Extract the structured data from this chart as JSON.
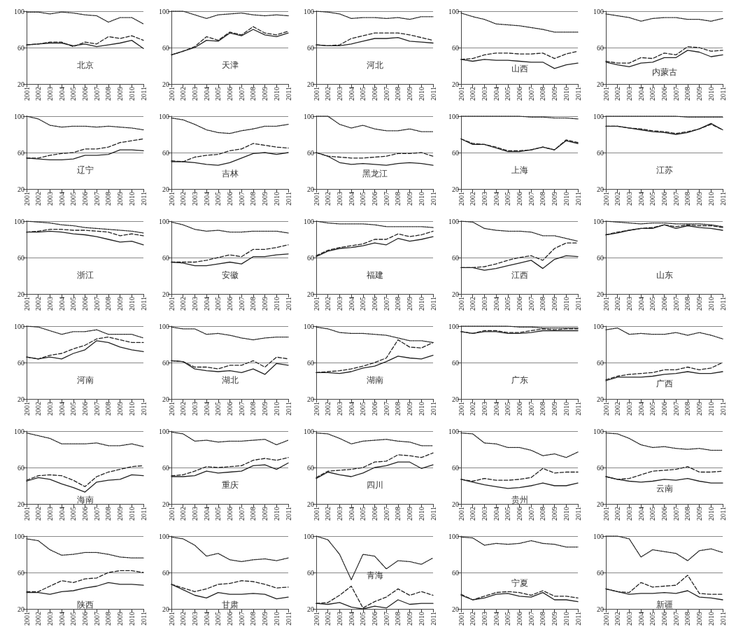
{
  "chart_data": [
    {
      "type": "line",
      "title": "北京",
      "categories": [
        "2001",
        "2002",
        "2003",
        "2004",
        "2005",
        "2006",
        "2007",
        "2008",
        "2009",
        "2010",
        "2011"
      ],
      "ylim": [
        20,
        100
      ],
      "yticks": [
        20,
        60,
        100
      ],
      "grid": "y",
      "series": [
        {
          "color": "#222222",
          "line_style": "dotted",
          "values": [
            99,
            99,
            97,
            99,
            98,
            96,
            95,
            88,
            93,
            93,
            86
          ]
        },
        {
          "color": "#222222",
          "line_style": "dashed",
          "values": [
            63,
            64,
            66,
            66,
            61,
            66,
            64,
            72,
            70,
            73,
            68
          ]
        },
        {
          "color": "#222222",
          "line_style": "solid",
          "values": [
            63,
            64,
            65,
            65,
            62,
            64,
            61,
            63,
            65,
            68,
            59
          ]
        }
      ]
    },
    {
      "type": "line",
      "title": "天津",
      "categories": [
        "2001",
        "2002",
        "2003",
        "2004",
        "2005",
        "2006",
        "2007",
        "2008",
        "2009",
        "2010",
        "2011"
      ],
      "ylim": [
        20,
        100
      ],
      "yticks": [
        20,
        60,
        100
      ],
      "grid": "y",
      "series": [
        {
          "color": "#222222",
          "line_style": "dotted",
          "values": [
            100,
            100,
            96,
            92,
            96,
            97,
            98,
            96,
            95,
            96,
            95
          ]
        },
        {
          "color": "#222222",
          "line_style": "dashed",
          "values": [
            52,
            56,
            61,
            72,
            68,
            77,
            74,
            83,
            76,
            74,
            78
          ]
        },
        {
          "color": "#222222",
          "line_style": "solid",
          "values": [
            52,
            56,
            60,
            68,
            67,
            76,
            73,
            80,
            74,
            72,
            76
          ]
        }
      ]
    },
    {
      "type": "line",
      "title": "河北",
      "categories": [
        "2001",
        "2002",
        "2003",
        "2004",
        "2005",
        "2006",
        "2007",
        "2008",
        "2009",
        "2010",
        "2011"
      ],
      "ylim": [
        20,
        100
      ],
      "yticks": [
        20,
        60,
        100
      ],
      "grid": "y",
      "series": [
        {
          "color": "#222222",
          "line_style": "dotted",
          "values": [
            100,
            99,
            97,
            92,
            93,
            93,
            92,
            93,
            91,
            94,
            94
          ]
        },
        {
          "color": "#222222",
          "line_style": "dashed",
          "values": [
            63,
            62,
            63,
            70,
            73,
            76,
            76,
            76,
            74,
            71,
            68
          ]
        },
        {
          "color": "#222222",
          "line_style": "solid",
          "values": [
            63,
            62,
            62,
            64,
            67,
            70,
            70,
            71,
            67,
            66,
            65
          ]
        }
      ]
    },
    {
      "type": "line",
      "title": "山西",
      "categories": [
        "2001",
        "2002",
        "2003",
        "2004",
        "2005",
        "2006",
        "2007",
        "2008",
        "2009",
        "2010",
        "2011"
      ],
      "ylim": [
        20,
        100
      ],
      "yticks": [
        20,
        60,
        100
      ],
      "grid": "y",
      "series": [
        {
          "color": "#222222",
          "line_style": "dotted",
          "values": [
            98,
            94,
            91,
            86,
            85,
            84,
            82,
            80,
            77,
            77,
            77
          ]
        },
        {
          "color": "#222222",
          "line_style": "dashed",
          "values": [
            47,
            48,
            52,
            54,
            54,
            53,
            53,
            54,
            48,
            53,
            56
          ]
        },
        {
          "color": "#222222",
          "line_style": "solid",
          "values": [
            47,
            45,
            47,
            46,
            46,
            45,
            44,
            44,
            37,
            41,
            43
          ]
        }
      ]
    },
    {
      "type": "line",
      "title": "内蒙古",
      "categories": [
        "2001",
        "2002",
        "2003",
        "2004",
        "2005",
        "2006",
        "2007",
        "2008",
        "2009",
        "2010",
        "2011"
      ],
      "ylim": [
        20,
        100
      ],
      "yticks": [
        20,
        60,
        100
      ],
      "grid": "y",
      "series": [
        {
          "color": "#222222",
          "line_style": "dotted",
          "values": [
            97,
            95,
            93,
            89,
            92,
            93,
            93,
            91,
            91,
            89,
            92
          ]
        },
        {
          "color": "#222222",
          "line_style": "dashed",
          "values": [
            45,
            43,
            43,
            49,
            48,
            54,
            52,
            61,
            60,
            56,
            57
          ]
        },
        {
          "color": "#222222",
          "line_style": "solid",
          "values": [
            44,
            41,
            39,
            43,
            44,
            49,
            49,
            57,
            55,
            50,
            52
          ]
        }
      ]
    },
    {
      "type": "line",
      "title": "辽宁",
      "categories": [
        "2001",
        "2002",
        "2003",
        "2004",
        "2005",
        "2006",
        "2007",
        "2008",
        "2009",
        "2010",
        "2011"
      ],
      "ylim": [
        20,
        100
      ],
      "yticks": [
        20,
        60,
        100
      ],
      "grid": "y",
      "series": [
        {
          "color": "#222222",
          "line_style": "dotted",
          "values": [
            100,
            97,
            90,
            88,
            89,
            89,
            88,
            89,
            88,
            87,
            85
          ]
        },
        {
          "color": "#222222",
          "line_style": "dashed",
          "values": [
            54,
            54,
            57,
            59,
            60,
            64,
            64,
            66,
            71,
            73,
            75
          ]
        },
        {
          "color": "#222222",
          "line_style": "solid",
          "values": [
            54,
            53,
            52,
            52,
            53,
            57,
            57,
            58,
            63,
            63,
            62
          ]
        }
      ]
    },
    {
      "type": "line",
      "title": "吉林",
      "categories": [
        "2001",
        "2002",
        "2003",
        "2004",
        "2005",
        "2006",
        "2007",
        "2008",
        "2009",
        "2010",
        "2011"
      ],
      "ylim": [
        20,
        100
      ],
      "yticks": [
        20,
        60,
        100
      ],
      "grid": "y",
      "series": [
        {
          "color": "#222222",
          "line_style": "dotted",
          "values": [
            98,
            96,
            91,
            85,
            82,
            81,
            84,
            86,
            89,
            89,
            91
          ]
        },
        {
          "color": "#222222",
          "line_style": "dashed",
          "values": [
            51,
            50,
            55,
            57,
            58,
            62,
            64,
            70,
            68,
            66,
            65
          ]
        },
        {
          "color": "#222222",
          "line_style": "solid",
          "values": [
            50,
            50,
            49,
            47,
            46,
            49,
            54,
            59,
            60,
            58,
            60
          ]
        }
      ]
    },
    {
      "type": "line",
      "title": "黑龙江",
      "categories": [
        "2001",
        "2002",
        "2003",
        "2004",
        "2005",
        "2006",
        "2007",
        "2008",
        "2009",
        "2010",
        "2011"
      ],
      "ylim": [
        20,
        100
      ],
      "yticks": [
        20,
        60,
        100
      ],
      "grid": "y",
      "series": [
        {
          "color": "#222222",
          "line_style": "dotted",
          "values": [
            100,
            100,
            91,
            87,
            90,
            86,
            84,
            84,
            86,
            83,
            83
          ]
        },
        {
          "color": "#222222",
          "line_style": "dashed",
          "values": [
            60,
            56,
            55,
            54,
            54,
            55,
            56,
            59,
            59,
            60,
            56
          ]
        },
        {
          "color": "#222222",
          "line_style": "solid",
          "values": [
            60,
            56,
            49,
            47,
            48,
            47,
            46,
            48,
            49,
            48,
            46
          ]
        }
      ]
    },
    {
      "type": "line",
      "title": "上海",
      "categories": [
        "2001",
        "2002",
        "2003",
        "2004",
        "2005",
        "2006",
        "2007",
        "2008",
        "2009",
        "2010",
        "2011"
      ],
      "ylim": [
        20,
        100
      ],
      "yticks": [
        20,
        60,
        100
      ],
      "grid": "y",
      "series": [
        {
          "color": "#222222",
          "line_style": "dotted",
          "values": [
            100,
            100,
            100,
            100,
            100,
            100,
            99,
            99,
            98,
            98,
            97
          ]
        },
        {
          "color": "#222222",
          "line_style": "dashed",
          "values": [
            75,
            70,
            69,
            66,
            62,
            62,
            63,
            66,
            63,
            74,
            71
          ]
        },
        {
          "color": "#222222",
          "line_style": "solid",
          "values": [
            75,
            69,
            69,
            65,
            61,
            61,
            63,
            66,
            63,
            73,
            70
          ]
        }
      ]
    },
    {
      "type": "line",
      "title": "江苏",
      "categories": [
        "2001",
        "2002",
        "2003",
        "2004",
        "2005",
        "2006",
        "2007",
        "2008",
        "2009",
        "2010",
        "2011"
      ],
      "ylim": [
        20,
        100
      ],
      "yticks": [
        20,
        60,
        100
      ],
      "grid": "y",
      "series": [
        {
          "color": "#222222",
          "line_style": "dotted",
          "values": [
            100,
            100,
            100,
            100,
            100,
            100,
            100,
            99,
            99,
            99,
            99
          ]
        },
        {
          "color": "#222222",
          "line_style": "dashed",
          "values": [
            89,
            89,
            87,
            86,
            84,
            83,
            81,
            83,
            86,
            91,
            85
          ]
        },
        {
          "color": "#222222",
          "line_style": "solid",
          "values": [
            89,
            89,
            87,
            85,
            83,
            82,
            80,
            82,
            86,
            92,
            85
          ]
        }
      ]
    },
    {
      "type": "line",
      "title": "浙江",
      "categories": [
        "2001",
        "2002",
        "2003",
        "2004",
        "2005",
        "2006",
        "2007",
        "2008",
        "2009",
        "2010",
        "2011"
      ],
      "ylim": [
        20,
        100
      ],
      "yticks": [
        20,
        60,
        100
      ],
      "grid": "y",
      "series": [
        {
          "color": "#222222",
          "line_style": "dotted",
          "values": [
            100,
            99,
            98,
            96,
            95,
            93,
            92,
            91,
            90,
            89,
            87
          ]
        },
        {
          "color": "#222222",
          "line_style": "dashed",
          "values": [
            88,
            89,
            91,
            91,
            90,
            90,
            89,
            88,
            84,
            86,
            84
          ]
        },
        {
          "color": "#222222",
          "line_style": "solid",
          "values": [
            88,
            88,
            89,
            88,
            86,
            85,
            83,
            80,
            77,
            78,
            74
          ]
        }
      ]
    },
    {
      "type": "line",
      "title": "安徽",
      "categories": [
        "2001",
        "2002",
        "2003",
        "2004",
        "2005",
        "2006",
        "2007",
        "2008",
        "2009",
        "2010",
        "2011"
      ],
      "ylim": [
        20,
        100
      ],
      "yticks": [
        20,
        60,
        100
      ],
      "grid": "y",
      "series": [
        {
          "color": "#222222",
          "line_style": "dotted",
          "values": [
            99,
            96,
            91,
            89,
            90,
            88,
            88,
            89,
            89,
            89,
            87
          ]
        },
        {
          "color": "#222222",
          "line_style": "dashed",
          "values": [
            55,
            55,
            55,
            57,
            60,
            63,
            61,
            69,
            69,
            71,
            74
          ]
        },
        {
          "color": "#222222",
          "line_style": "solid",
          "values": [
            55,
            54,
            51,
            51,
            53,
            55,
            53,
            61,
            61,
            63,
            64
          ]
        }
      ]
    },
    {
      "type": "line",
      "title": "福建",
      "categories": [
        "2001",
        "2002",
        "2003",
        "2004",
        "2005",
        "2006",
        "2007",
        "2008",
        "2009",
        "2010",
        "2011"
      ],
      "ylim": [
        20,
        100
      ],
      "yticks": [
        20,
        60,
        100
      ],
      "grid": "y",
      "series": [
        {
          "color": "#222222",
          "line_style": "dotted",
          "values": [
            100,
            98,
            97,
            97,
            97,
            96,
            94,
            94,
            94,
            94,
            93
          ]
        },
        {
          "color": "#222222",
          "line_style": "dashed",
          "values": [
            62,
            68,
            71,
            73,
            75,
            80,
            80,
            86,
            83,
            85,
            89
          ]
        },
        {
          "color": "#222222",
          "line_style": "solid",
          "values": [
            61,
            67,
            70,
            71,
            73,
            76,
            74,
            81,
            78,
            80,
            83
          ]
        }
      ]
    },
    {
      "type": "line",
      "title": "江西",
      "categories": [
        "2001",
        "2002",
        "2003",
        "2004",
        "2005",
        "2006",
        "2007",
        "2008",
        "2009",
        "2010",
        "2011"
      ],
      "ylim": [
        20,
        100
      ],
      "yticks": [
        20,
        60,
        100
      ],
      "grid": "y",
      "series": [
        {
          "color": "#222222",
          "line_style": "dotted",
          "values": [
            100,
            99,
            92,
            90,
            89,
            89,
            88,
            84,
            84,
            81,
            78
          ]
        },
        {
          "color": "#222222",
          "line_style": "dashed",
          "values": [
            49,
            49,
            50,
            53,
            57,
            60,
            62,
            57,
            70,
            76,
            76
          ]
        },
        {
          "color": "#222222",
          "line_style": "solid",
          "values": [
            49,
            49,
            46,
            48,
            51,
            54,
            57,
            48,
            58,
            62,
            61
          ]
        }
      ]
    },
    {
      "type": "line",
      "title": "山东",
      "categories": [
        "2001",
        "2002",
        "2003",
        "2004",
        "2005",
        "2006",
        "2007",
        "2008",
        "2009",
        "2010",
        "2011"
      ],
      "ylim": [
        20,
        100
      ],
      "yticks": [
        20,
        60,
        100
      ],
      "grid": "y",
      "series": [
        {
          "color": "#222222",
          "line_style": "dotted",
          "values": [
            100,
            99,
            98,
            97,
            98,
            98,
            97,
            97,
            97,
            96,
            94
          ]
        },
        {
          "color": "#222222",
          "line_style": "dashed",
          "values": [
            85,
            88,
            90,
            92,
            93,
            96,
            94,
            96,
            95,
            95,
            93
          ]
        },
        {
          "color": "#222222",
          "line_style": "solid",
          "values": [
            85,
            87,
            90,
            92,
            92,
            96,
            92,
            95,
            93,
            92,
            90
          ]
        }
      ]
    },
    {
      "type": "line",
      "title": "河南",
      "categories": [
        "2001",
        "2002",
        "2003",
        "2004",
        "2005",
        "2006",
        "2007",
        "2008",
        "2009",
        "2010",
        "2011"
      ],
      "ylim": [
        20,
        100
      ],
      "yticks": [
        20,
        60,
        100
      ],
      "grid": "y",
      "series": [
        {
          "color": "#222222",
          "line_style": "dotted",
          "values": [
            100,
            99,
            95,
            91,
            94,
            94,
            96,
            91,
            91,
            91,
            87
          ]
        },
        {
          "color": "#222222",
          "line_style": "dashed",
          "values": [
            66,
            64,
            68,
            70,
            75,
            79,
            86,
            88,
            85,
            82,
            82
          ]
        },
        {
          "color": "#222222",
          "line_style": "solid",
          "values": [
            66,
            64,
            66,
            64,
            70,
            74,
            84,
            82,
            77,
            74,
            72
          ]
        }
      ]
    },
    {
      "type": "line",
      "title": "湖北",
      "categories": [
        "2001",
        "2002",
        "2003",
        "2004",
        "2005",
        "2006",
        "2007",
        "2008",
        "2009",
        "2010",
        "2011"
      ],
      "ylim": [
        20,
        100
      ],
      "yticks": [
        20,
        60,
        100
      ],
      "grid": "y",
      "series": [
        {
          "color": "#222222",
          "line_style": "dotted",
          "values": [
            99,
            97,
            97,
            91,
            92,
            90,
            87,
            85,
            87,
            88,
            88
          ]
        },
        {
          "color": "#222222",
          "line_style": "dashed",
          "values": [
            62,
            61,
            55,
            55,
            53,
            57,
            57,
            62,
            55,
            66,
            64
          ]
        },
        {
          "color": "#222222",
          "line_style": "solid",
          "values": [
            62,
            61,
            53,
            51,
            50,
            51,
            49,
            53,
            47,
            59,
            57
          ]
        }
      ]
    },
    {
      "type": "line",
      "title": "湖南",
      "categories": [
        "2001",
        "2002",
        "2003",
        "2004",
        "2005",
        "2006",
        "2007",
        "2008",
        "2009",
        "2010",
        "2011"
      ],
      "ylim": [
        20,
        100
      ],
      "yticks": [
        20,
        60,
        100
      ],
      "grid": "y",
      "series": [
        {
          "color": "#222222",
          "line_style": "dotted",
          "values": [
            99,
            97,
            93,
            92,
            92,
            91,
            90,
            87,
            84,
            84,
            82
          ]
        },
        {
          "color": "#222222",
          "line_style": "dashed",
          "values": [
            49,
            50,
            51,
            53,
            56,
            60,
            65,
            85,
            77,
            76,
            82
          ]
        },
        {
          "color": "#222222",
          "line_style": "solid",
          "values": [
            49,
            49,
            48,
            50,
            54,
            56,
            61,
            67,
            65,
            64,
            68
          ]
        }
      ]
    },
    {
      "type": "line",
      "title": "广东",
      "categories": [
        "2001",
        "2002",
        "2003",
        "2004",
        "2005",
        "2006",
        "2007",
        "2008",
        "2009",
        "2010",
        "2011"
      ],
      "ylim": [
        20,
        100
      ],
      "yticks": [
        20,
        60,
        100
      ],
      "grid": "y",
      "series": [
        {
          "color": "#222222",
          "line_style": "dotted",
          "values": [
            100,
            100,
            100,
            100,
            100,
            99,
            99,
            98,
            98,
            98,
            98
          ]
        },
        {
          "color": "#222222",
          "line_style": "dashed",
          "values": [
            94,
            92,
            95,
            95,
            93,
            93,
            95,
            97,
            96,
            97,
            97
          ]
        },
        {
          "color": "#222222",
          "line_style": "solid",
          "values": [
            94,
            92,
            94,
            94,
            92,
            92,
            93,
            95,
            95,
            95,
            95
          ]
        }
      ]
    },
    {
      "type": "line",
      "title": "广西",
      "categories": [
        "2001",
        "2002",
        "2003",
        "2004",
        "2005",
        "2006",
        "2007",
        "2008",
        "2009",
        "2010",
        "2011"
      ],
      "ylim": [
        20,
        100
      ],
      "yticks": [
        20,
        60,
        100
      ],
      "grid": "y",
      "series": [
        {
          "color": "#222222",
          "line_style": "dotted",
          "values": [
            96,
            98,
            91,
            92,
            91,
            91,
            93,
            90,
            93,
            90,
            86
          ]
        },
        {
          "color": "#222222",
          "line_style": "dashed",
          "values": [
            41,
            45,
            47,
            48,
            49,
            52,
            52,
            55,
            52,
            54,
            60
          ]
        },
        {
          "color": "#222222",
          "line_style": "solid",
          "values": [
            40,
            44,
            44,
            44,
            45,
            47,
            48,
            50,
            48,
            48,
            50
          ]
        }
      ]
    },
    {
      "type": "line",
      "title": "海南",
      "categories": [
        "2001",
        "2002",
        "2003",
        "2004",
        "2005",
        "2006",
        "2007",
        "2008",
        "2009",
        "2010",
        "2011"
      ],
      "ylim": [
        20,
        100
      ],
      "yticks": [
        20,
        60,
        100
      ],
      "grid": "y",
      "series": [
        {
          "color": "#222222",
          "line_style": "dotted",
          "values": [
            98,
            95,
            92,
            86,
            86,
            86,
            87,
            84,
            84,
            86,
            83
          ]
        },
        {
          "color": "#222222",
          "line_style": "dashed",
          "values": [
            46,
            51,
            52,
            51,
            46,
            39,
            50,
            55,
            58,
            61,
            62
          ]
        },
        {
          "color": "#222222",
          "line_style": "solid",
          "values": [
            45,
            49,
            47,
            42,
            38,
            33,
            44,
            46,
            47,
            52,
            51
          ]
        }
      ]
    },
    {
      "type": "line",
      "title": "重庆",
      "categories": [
        "2001",
        "2002",
        "2003",
        "2004",
        "2005",
        "2006",
        "2007",
        "2008",
        "2009",
        "2010",
        "2011"
      ],
      "ylim": [
        20,
        100
      ],
      "yticks": [
        20,
        60,
        100
      ],
      "grid": "y",
      "series": [
        {
          "color": "#222222",
          "line_style": "dotted",
          "values": [
            99,
            97,
            89,
            90,
            88,
            89,
            89,
            90,
            91,
            85,
            90
          ]
        },
        {
          "color": "#222222",
          "line_style": "dashed",
          "values": [
            51,
            52,
            56,
            61,
            60,
            61,
            62,
            68,
            70,
            68,
            71
          ]
        },
        {
          "color": "#222222",
          "line_style": "solid",
          "values": [
            50,
            50,
            51,
            56,
            54,
            55,
            56,
            62,
            63,
            58,
            65
          ]
        }
      ]
    },
    {
      "type": "line",
      "title": "四川",
      "categories": [
        "2001",
        "2002",
        "2003",
        "2004",
        "2005",
        "2006",
        "2007",
        "2008",
        "2009",
        "2010",
        "2011"
      ],
      "ylim": [
        20,
        100
      ],
      "yticks": [
        20,
        60,
        100
      ],
      "grid": "y",
      "series": [
        {
          "color": "#222222",
          "line_style": "dotted",
          "values": [
            98,
            97,
            92,
            86,
            89,
            90,
            91,
            89,
            88,
            84,
            84
          ]
        },
        {
          "color": "#222222",
          "line_style": "dashed",
          "values": [
            49,
            56,
            57,
            58,
            60,
            66,
            67,
            74,
            73,
            71,
            76
          ]
        },
        {
          "color": "#222222",
          "line_style": "solid",
          "values": [
            48,
            55,
            52,
            50,
            54,
            60,
            62,
            66,
            66,
            59,
            63
          ]
        }
      ]
    },
    {
      "type": "line",
      "title": "贵州",
      "categories": [
        "2001",
        "2002",
        "2003",
        "2004",
        "2005",
        "2006",
        "2007",
        "2008",
        "2009",
        "2010",
        "2011"
      ],
      "ylim": [
        20,
        100
      ],
      "yticks": [
        20,
        60,
        100
      ],
      "grid": "y",
      "series": [
        {
          "color": "#222222",
          "line_style": "dotted",
          "values": [
            98,
            97,
            87,
            86,
            82,
            82,
            79,
            73,
            75,
            71,
            77
          ]
        },
        {
          "color": "#222222",
          "line_style": "dashed",
          "values": [
            47,
            45,
            48,
            46,
            46,
            47,
            49,
            59,
            54,
            55,
            55
          ]
        },
        {
          "color": "#222222",
          "line_style": "solid",
          "values": [
            47,
            44,
            41,
            39,
            37,
            38,
            40,
            43,
            40,
            40,
            43
          ]
        }
      ]
    },
    {
      "type": "line",
      "title": "云南",
      "categories": [
        "2001",
        "2002",
        "2003",
        "2004",
        "2005",
        "2006",
        "2007",
        "2008",
        "2009",
        "2010",
        "2011"
      ],
      "ylim": [
        20,
        100
      ],
      "yticks": [
        20,
        60,
        100
      ],
      "grid": "y",
      "series": [
        {
          "color": "#222222",
          "line_style": "dotted",
          "values": [
            98,
            97,
            92,
            85,
            82,
            83,
            81,
            80,
            81,
            79,
            79
          ]
        },
        {
          "color": "#222222",
          "line_style": "dashed",
          "values": [
            50,
            47,
            48,
            52,
            56,
            57,
            58,
            61,
            55,
            55,
            56
          ]
        },
        {
          "color": "#222222",
          "line_style": "solid",
          "values": [
            50,
            47,
            45,
            44,
            45,
            47,
            46,
            48,
            45,
            43,
            43
          ]
        }
      ]
    },
    {
      "type": "line",
      "title": "陕西",
      "categories": [
        "2001",
        "2002",
        "2003",
        "2004",
        "2005",
        "2006",
        "2007",
        "2008",
        "2009",
        "2010",
        "2011"
      ],
      "ylim": [
        20,
        100
      ],
      "yticks": [
        20,
        60,
        100
      ],
      "grid": "y",
      "series": [
        {
          "color": "#222222",
          "line_style": "dotted",
          "values": [
            97,
            95,
            85,
            79,
            80,
            82,
            82,
            80,
            77,
            76,
            76
          ]
        },
        {
          "color": "#222222",
          "line_style": "dashed",
          "values": [
            39,
            39,
            45,
            51,
            49,
            53,
            54,
            60,
            62,
            62,
            60
          ]
        },
        {
          "color": "#222222",
          "line_style": "solid",
          "values": [
            38,
            38,
            36,
            39,
            40,
            43,
            45,
            49,
            47,
            47,
            46
          ]
        }
      ]
    },
    {
      "type": "line",
      "title": "甘肃",
      "categories": [
        "2001",
        "2002",
        "2003",
        "2004",
        "2005",
        "2006",
        "2007",
        "2008",
        "2009",
        "2010",
        "2011"
      ],
      "ylim": [
        20,
        100
      ],
      "yticks": [
        20,
        60,
        100
      ],
      "grid": "y",
      "series": [
        {
          "color": "#222222",
          "line_style": "dotted",
          "values": [
            99,
            97,
            90,
            78,
            81,
            74,
            72,
            74,
            75,
            73,
            76
          ]
        },
        {
          "color": "#222222",
          "line_style": "dashed",
          "values": [
            47,
            43,
            39,
            42,
            47,
            48,
            51,
            50,
            47,
            43,
            44
          ]
        },
        {
          "color": "#222222",
          "line_style": "solid",
          "values": [
            47,
            41,
            35,
            32,
            38,
            36,
            36,
            37,
            36,
            31,
            33
          ]
        }
      ]
    },
    {
      "type": "line",
      "title": "青海",
      "categories": [
        "2001",
        "2002",
        "2003",
        "2004",
        "2005",
        "2006",
        "2007",
        "2008",
        "2009",
        "2010",
        "2011"
      ],
      "ylim": [
        20,
        100
      ],
      "yticks": [
        20,
        60,
        100
      ],
      "grid": "y",
      "series": [
        {
          "color": "#222222",
          "line_style": "dotted",
          "values": [
            100,
            96,
            80,
            52,
            80,
            78,
            64,
            73,
            72,
            69,
            76
          ]
        },
        {
          "color": "#222222",
          "line_style": "dashed",
          "values": [
            26,
            27,
            35,
            45,
            21,
            28,
            33,
            42,
            35,
            39,
            35
          ]
        },
        {
          "color": "#222222",
          "line_style": "solid",
          "values": [
            26,
            25,
            27,
            22,
            20,
            23,
            21,
            30,
            25,
            26,
            26
          ]
        }
      ]
    },
    {
      "type": "line",
      "title": "宁夏",
      "categories": [
        "2001",
        "2002",
        "2003",
        "2004",
        "2005",
        "2006",
        "2007",
        "2008",
        "2009",
        "2010",
        "2011"
      ],
      "ylim": [
        20,
        100
      ],
      "yticks": [
        20,
        60,
        100
      ],
      "grid": "y",
      "series": [
        {
          "color": "#222222",
          "line_style": "dotted",
          "values": [
            99,
            98,
            90,
            92,
            91,
            92,
            95,
            92,
            91,
            88,
            88
          ]
        },
        {
          "color": "#222222",
          "line_style": "dashed",
          "values": [
            36,
            30,
            34,
            38,
            39,
            38,
            35,
            40,
            34,
            34,
            32
          ]
        },
        {
          "color": "#222222",
          "line_style": "solid",
          "values": [
            35,
            30,
            32,
            36,
            37,
            34,
            33,
            38,
            30,
            30,
            28
          ]
        }
      ]
    },
    {
      "type": "line",
      "title": "新疆",
      "categories": [
        "2001",
        "2002",
        "2003",
        "2004",
        "2005",
        "2006",
        "2007",
        "2008",
        "2009",
        "2010",
        "2011"
      ],
      "ylim": [
        20,
        100
      ],
      "yticks": [
        20,
        60,
        100
      ],
      "grid": "y",
      "series": [
        {
          "color": "#222222",
          "line_style": "dotted",
          "values": [
            100,
            100,
            97,
            77,
            85,
            83,
            81,
            73,
            84,
            86,
            82
          ]
        },
        {
          "color": "#222222",
          "line_style": "dashed",
          "values": [
            42,
            39,
            38,
            49,
            44,
            45,
            46,
            57,
            37,
            36,
            36
          ]
        },
        {
          "color": "#222222",
          "line_style": "solid",
          "values": [
            42,
            39,
            36,
            37,
            37,
            38,
            37,
            40,
            33,
            32,
            30
          ]
        }
      ]
    }
  ]
}
